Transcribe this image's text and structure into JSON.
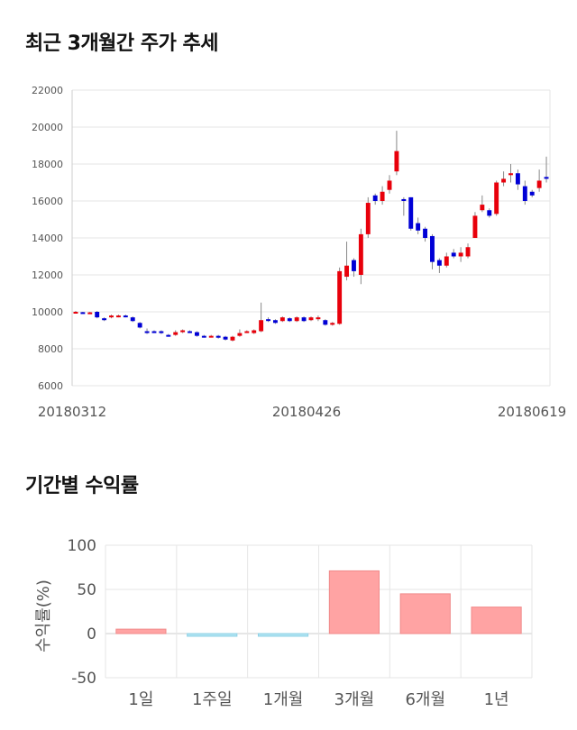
{
  "titles": {
    "price": "최근 3개월간 주가 추세",
    "returns": "기간별 수익률"
  },
  "colors": {
    "up": "#e8000b",
    "down": "#0000d6",
    "bar_positive": "#ffa3a3",
    "bar_negative": "#aee4f2",
    "grid": "#e6e6e6"
  },
  "chart_data": [
    {
      "type": "candlestick",
      "ylim": [
        6000,
        22000
      ],
      "y_ticks": [
        "22000",
        "20000",
        "18000",
        "16000",
        "14000",
        "12000",
        "10000",
        "8000",
        "6000"
      ],
      "x_tick_labels": [
        "20180312",
        "20180426",
        "20180619"
      ],
      "grid": true,
      "candles": [
        [
          10000,
          10000,
          10050,
          9950
        ],
        [
          9980,
          9950,
          10000,
          9900
        ],
        [
          9950,
          9970,
          10000,
          9900
        ],
        [
          10000,
          9700,
          10050,
          9650
        ],
        [
          9650,
          9550,
          9700,
          9500
        ],
        [
          9700,
          9800,
          9850,
          9650
        ],
        [
          9750,
          9800,
          9850,
          9700
        ],
        [
          9800,
          9750,
          9850,
          9700
        ],
        [
          9700,
          9500,
          9750,
          9450
        ],
        [
          9400,
          9150,
          9450,
          9100
        ],
        [
          8950,
          8900,
          9100,
          8800
        ],
        [
          8950,
          8900,
          9000,
          8850
        ],
        [
          8950,
          8850,
          9000,
          8800
        ],
        [
          8750,
          8700,
          8800,
          8650
        ],
        [
          8750,
          8900,
          9000,
          8700
        ],
        [
          8900,
          9000,
          9050,
          8850
        ],
        [
          8950,
          8900,
          9000,
          8850
        ],
        [
          8900,
          8700,
          8950,
          8650
        ],
        [
          8700,
          8650,
          8750,
          8600
        ],
        [
          8700,
          8700,
          8750,
          8650
        ],
        [
          8700,
          8600,
          8750,
          8550
        ],
        [
          8650,
          8500,
          8700,
          8450
        ],
        [
          8450,
          8650,
          8700,
          8400
        ],
        [
          8700,
          8850,
          9050,
          8650
        ],
        [
          8950,
          8950,
          9000,
          8850
        ],
        [
          8850,
          9000,
          9050,
          8800
        ],
        [
          8950,
          9550,
          10500,
          8900
        ],
        [
          9600,
          9550,
          9700,
          9450
        ],
        [
          9550,
          9400,
          9600,
          9350
        ],
        [
          9500,
          9700,
          9750,
          9450
        ],
        [
          9650,
          9500,
          9700,
          9450
        ],
        [
          9500,
          9700,
          9750,
          9450
        ],
        [
          9700,
          9500,
          9750,
          9450
        ],
        [
          9550,
          9700,
          9750,
          9500
        ],
        [
          9600,
          9700,
          9800,
          9500
        ],
        [
          9550,
          9300,
          9600,
          9250
        ],
        [
          9300,
          9400,
          9450,
          9250
        ],
        [
          9350,
          12200,
          12400,
          9300
        ],
        [
          11900,
          12500,
          13800,
          11700
        ],
        [
          12800,
          12200,
          12900,
          11900
        ],
        [
          12000,
          14200,
          14500,
          11500
        ],
        [
          14200,
          15900,
          16200,
          14000
        ],
        [
          16300,
          16000,
          16400,
          15800
        ],
        [
          16000,
          16500,
          16800,
          15800
        ],
        [
          16600,
          17100,
          17400,
          16400
        ],
        [
          17600,
          18700,
          19800,
          17400
        ],
        [
          16100,
          16000,
          16200,
          15200
        ],
        [
          16200,
          14500,
          16200,
          14400
        ],
        [
          14800,
          14400,
          15100,
          14200
        ],
        [
          14500,
          14000,
          14600,
          13800
        ],
        [
          14100,
          12700,
          14200,
          12300
        ],
        [
          12800,
          12500,
          12900,
          12100
        ],
        [
          12500,
          13000,
          13200,
          12400
        ],
        [
          13200,
          13000,
          13400,
          12900
        ],
        [
          13000,
          13200,
          13500,
          12700
        ],
        [
          13000,
          13500,
          13700,
          12900
        ],
        [
          14000,
          15200,
          15400,
          14000
        ],
        [
          15500,
          15800,
          16300,
          15400
        ],
        [
          15500,
          15200,
          15600,
          15100
        ],
        [
          15300,
          17000,
          17100,
          15200
        ],
        [
          17000,
          17200,
          17600,
          16800
        ],
        [
          17400,
          17500,
          18000,
          17000
        ],
        [
          17500,
          16900,
          17700,
          16600
        ],
        [
          16800,
          16000,
          17100,
          15800
        ],
        [
          16500,
          16300,
          16600,
          16200
        ],
        [
          16700,
          17100,
          17700,
          16500
        ],
        [
          17300,
          17200,
          18400,
          17000
        ]
      ]
    },
    {
      "type": "bar",
      "ylabel": "수익률(%)",
      "ylim": [
        -50,
        100
      ],
      "y_ticks": [
        "100",
        "50",
        "0",
        "-50"
      ],
      "categories": [
        "1일",
        "1주일",
        "1개월",
        "3개월",
        "6개월",
        "1년"
      ],
      "values": [
        5,
        -2,
        -3,
        71,
        45,
        30
      ],
      "grid": true
    }
  ]
}
